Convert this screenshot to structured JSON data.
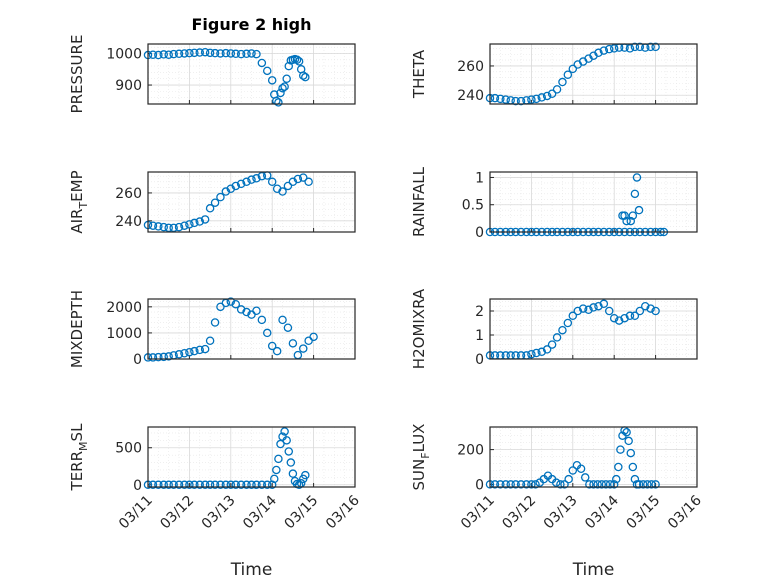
{
  "chart_data": [
    {
      "type": "scatter",
      "title": "Figure 2 high",
      "ylabel": "PRESSURE",
      "xlabel": "",
      "ylim": [
        840,
        1030
      ],
      "yticks": [
        900,
        1000
      ],
      "series": [
        {
          "x": [
            0.0,
            0.12,
            0.25,
            0.38,
            0.5,
            0.62,
            0.75,
            0.88,
            1.0,
            1.12,
            1.25,
            1.38,
            1.5,
            1.62,
            1.75,
            1.88,
            2.0,
            2.12,
            2.25,
            2.38,
            2.5,
            2.62,
            2.75,
            2.88,
            3.0,
            3.05,
            3.1,
            3.15,
            3.2,
            3.25,
            3.3,
            3.35,
            3.4,
            3.45,
            3.5,
            3.55,
            3.6,
            3.65,
            3.7,
            3.75,
            3.8
          ],
          "y": [
            995,
            996,
            995,
            997,
            996,
            998,
            999,
            1000,
            1001,
            1002,
            1003,
            1004,
            1002,
            1001,
            1000,
            1001,
            1000,
            999,
            998,
            999,
            1000,
            998,
            970,
            945,
            915,
            870,
            850,
            845,
            875,
            890,
            895,
            920,
            960,
            978,
            980,
            982,
            980,
            975,
            950,
            930,
            925
          ]
        }
      ]
    },
    {
      "type": "scatter",
      "title": "",
      "ylabel": "THETA",
      "xlabel": "",
      "ylim": [
        234,
        275
      ],
      "yticks": [
        240,
        260
      ],
      "series": [
        {
          "x": [
            0.0,
            0.12,
            0.25,
            0.38,
            0.5,
            0.62,
            0.75,
            0.88,
            1.0,
            1.12,
            1.25,
            1.38,
            1.5,
            1.62,
            1.75,
            1.88,
            2.0,
            2.12,
            2.25,
            2.38,
            2.5,
            2.62,
            2.75,
            2.88,
            3.0,
            3.12,
            3.25,
            3.38,
            3.5,
            3.62,
            3.75,
            3.88,
            4.0
          ],
          "y": [
            238,
            238,
            237.5,
            237,
            236.5,
            236,
            236,
            236.5,
            237,
            237.5,
            238.5,
            239.5,
            241,
            244,
            249,
            254,
            258,
            261,
            263,
            265,
            267,
            269,
            270.5,
            271.5,
            272,
            272.5,
            272.5,
            272,
            273,
            273,
            272.5,
            273,
            273
          ]
        }
      ]
    },
    {
      "type": "scatter",
      "title": "",
      "ylabel": "AIR_TEMP",
      "xlabel": "",
      "ylim": [
        232,
        275
      ],
      "yticks": [
        240,
        260
      ],
      "series": [
        {
          "x": [
            0.0,
            0.12,
            0.25,
            0.38,
            0.5,
            0.62,
            0.75,
            0.88,
            1.0,
            1.12,
            1.25,
            1.38,
            1.5,
            1.62,
            1.75,
            1.88,
            2.0,
            2.12,
            2.25,
            2.38,
            2.5,
            2.62,
            2.75,
            2.88,
            3.0,
            3.12,
            3.25,
            3.38,
            3.5,
            3.62,
            3.75,
            3.88
          ],
          "y": [
            237,
            236.5,
            236,
            235.5,
            235,
            235,
            235.5,
            236.5,
            237.5,
            238.5,
            239.5,
            241,
            249,
            253,
            257,
            261,
            263,
            265,
            266.5,
            268,
            269.5,
            270.5,
            272,
            272.5,
            268,
            263,
            261,
            265,
            268,
            270,
            271,
            268
          ]
        }
      ]
    },
    {
      "type": "scatter",
      "title": "",
      "ylabel": "RAINFALL",
      "xlabel": "",
      "ylim": [
        0,
        1.1
      ],
      "yticks": [
        0,
        0.5,
        1
      ],
      "series": [
        {
          "x": [
            0.0,
            0.12,
            0.25,
            0.38,
            0.5,
            0.62,
            0.75,
            0.88,
            1.0,
            1.12,
            1.25,
            1.38,
            1.5,
            1.62,
            1.75,
            1.88,
            2.0,
            2.12,
            2.25,
            2.38,
            2.5,
            2.62,
            2.75,
            2.88,
            3.0,
            3.12,
            3.25,
            3.38,
            3.5,
            3.62,
            3.75,
            3.88,
            4.0,
            4.12,
            4.2,
            3.4,
            3.45,
            3.5,
            3.55,
            3.6,
            3.25,
            3.3,
            3.2
          ],
          "y": [
            0,
            0,
            0,
            0,
            0,
            0,
            0,
            0,
            0,
            0,
            0,
            0,
            0,
            0,
            0,
            0,
            0,
            0,
            0,
            0,
            0,
            0,
            0,
            0,
            0,
            0,
            0,
            0,
            0,
            0,
            0,
            0,
            0,
            0,
            0,
            0.2,
            0.3,
            0.7,
            1.0,
            0.4,
            0.3,
            0.2,
            0.3
          ]
        }
      ]
    },
    {
      "type": "scatter",
      "title": "",
      "ylabel": "MIXDEPTH",
      "xlabel": "",
      "ylim": [
        0,
        2300
      ],
      "yticks": [
        0,
        1000,
        2000
      ],
      "series": [
        {
          "x": [
            0.0,
            0.12,
            0.25,
            0.38,
            0.5,
            0.62,
            0.75,
            0.88,
            1.0,
            1.12,
            1.25,
            1.38,
            1.5,
            1.62,
            1.75,
            1.88,
            2.0,
            2.12,
            2.25,
            2.38,
            2.5,
            2.62,
            2.75,
            2.88,
            3.0,
            3.12,
            3.25,
            3.38,
            3.5,
            3.62,
            3.75,
            3.88,
            4.0
          ],
          "y": [
            60,
            60,
            70,
            80,
            100,
            140,
            180,
            220,
            260,
            300,
            350,
            380,
            700,
            1400,
            2000,
            2150,
            2200,
            2100,
            1900,
            1800,
            1700,
            1850,
            1500,
            1000,
            500,
            300,
            1500,
            1200,
            600,
            150,
            400,
            700,
            850
          ]
        }
      ]
    },
    {
      "type": "scatter",
      "title": "",
      "ylabel": "H2OMIXRA",
      "xlabel": "",
      "ylim": [
        0,
        2.5
      ],
      "yticks": [
        0,
        1,
        2
      ],
      "series": [
        {
          "x": [
            0.0,
            0.12,
            0.25,
            0.38,
            0.5,
            0.62,
            0.75,
            0.88,
            1.0,
            1.12,
            1.25,
            1.38,
            1.5,
            1.62,
            1.75,
            1.88,
            2.0,
            2.12,
            2.25,
            2.38,
            2.5,
            2.62,
            2.75,
            2.88,
            3.0,
            3.12,
            3.25,
            3.38,
            3.5,
            3.62,
            3.75,
            3.88,
            4.0
          ],
          "y": [
            0.15,
            0.15,
            0.15,
            0.15,
            0.15,
            0.15,
            0.15,
            0.15,
            0.2,
            0.25,
            0.3,
            0.4,
            0.6,
            0.9,
            1.2,
            1.5,
            1.8,
            2.0,
            2.1,
            2.05,
            2.15,
            2.2,
            2.3,
            2.0,
            1.7,
            1.6,
            1.7,
            1.8,
            1.8,
            2.0,
            2.2,
            2.1,
            2.0
          ]
        }
      ]
    },
    {
      "type": "scatter",
      "title": "",
      "ylabel": "TERR_MSL",
      "xlabel": "Time",
      "xticks": [
        "03/11",
        "03/12",
        "03/13",
        "03/14",
        "03/15",
        "03/16"
      ],
      "ylim": [
        -30,
        780
      ],
      "yticks": [
        0,
        500
      ],
      "series": [
        {
          "x": [
            0.0,
            0.12,
            0.25,
            0.38,
            0.5,
            0.62,
            0.75,
            0.88,
            1.0,
            1.12,
            1.25,
            1.38,
            1.5,
            1.62,
            1.75,
            1.88,
            2.0,
            2.12,
            2.25,
            2.38,
            2.5,
            2.62,
            2.75,
            2.88,
            3.0,
            3.05,
            3.1,
            3.15,
            3.2,
            3.25,
            3.3,
            3.35,
            3.4,
            3.45,
            3.5,
            3.55,
            3.6,
            3.65,
            3.7,
            3.75,
            3.8
          ],
          "y": [
            0,
            0,
            0,
            0,
            0,
            0,
            0,
            0,
            0,
            0,
            0,
            0,
            0,
            0,
            0,
            0,
            0,
            0,
            0,
            0,
            0,
            0,
            0,
            0,
            0,
            80,
            200,
            350,
            550,
            650,
            720,
            600,
            450,
            300,
            150,
            50,
            10,
            0,
            20,
            80,
            130
          ]
        }
      ]
    },
    {
      "type": "scatter",
      "title": "",
      "ylabel": "SUN_FLUX",
      "xlabel": "Time",
      "xticks": [
        "03/11",
        "03/12",
        "03/13",
        "03/14",
        "03/15",
        "03/16"
      ],
      "ylim": [
        -15,
        330
      ],
      "yticks": [
        0,
        200
      ],
      "series": [
        {
          "x": [
            0.0,
            0.12,
            0.25,
            0.38,
            0.5,
            0.62,
            0.75,
            0.88,
            1.0,
            1.1,
            1.2,
            1.3,
            1.4,
            1.5,
            1.6,
            1.7,
            1.8,
            1.9,
            2.0,
            2.1,
            2.2,
            2.3,
            2.4,
            2.5,
            2.6,
            2.7,
            2.8,
            2.9,
            3.0,
            3.05,
            3.1,
            3.15,
            3.2,
            3.25,
            3.3,
            3.35,
            3.4,
            3.45,
            3.5,
            3.55,
            3.6,
            3.7,
            3.8,
            3.9,
            4.0
          ],
          "y": [
            0,
            0,
            0,
            0,
            0,
            0,
            0,
            0,
            0,
            0,
            10,
            30,
            50,
            30,
            10,
            0,
            0,
            30,
            80,
            110,
            90,
            40,
            0,
            0,
            0,
            0,
            0,
            0,
            0,
            30,
            100,
            200,
            280,
            310,
            300,
            250,
            180,
            100,
            30,
            0,
            0,
            0,
            0,
            0,
            0
          ]
        }
      ]
    }
  ]
}
